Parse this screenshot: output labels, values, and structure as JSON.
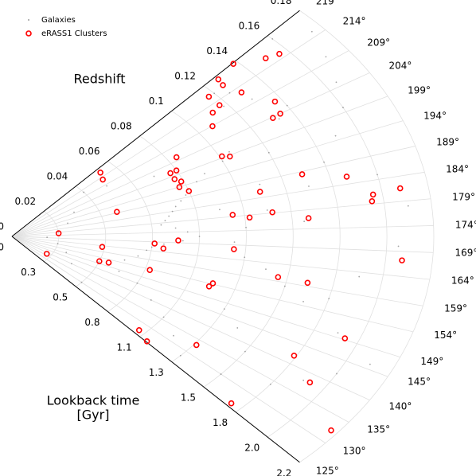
{
  "chart_data": {
    "type": "polar_wedge",
    "r_label": "Redshift",
    "lookback_label": [
      "Lookback time",
      "[Gyr]"
    ],
    "thetalim": [
      125,
      219
    ],
    "thetaticks": [
      {
        "value": 219,
        "label": "219°"
      },
      {
        "value": 214,
        "label": "214°"
      },
      {
        "value": 209,
        "label": "209°"
      },
      {
        "value": 204,
        "label": "204°"
      },
      {
        "value": 199,
        "label": "199°"
      },
      {
        "value": 194,
        "label": "194°"
      },
      {
        "value": 189,
        "label": "189°"
      },
      {
        "value": 184,
        "label": "184°"
      },
      {
        "value": 179,
        "label": "179°"
      },
      {
        "value": 174,
        "label": "174°"
      },
      {
        "value": 169,
        "label": "169°"
      },
      {
        "value": 164,
        "label": "164°"
      },
      {
        "value": 159,
        "label": "159°"
      },
      {
        "value": 154,
        "label": "154°"
      },
      {
        "value": 149,
        "label": "149°"
      },
      {
        "value": 145,
        "label": "145°"
      },
      {
        "value": 140,
        "label": "140°"
      },
      {
        "value": 135,
        "label": "135°"
      },
      {
        "value": 130,
        "label": "130°"
      },
      {
        "value": 125,
        "label": "125°"
      }
    ],
    "rlim": [
      0,
      0.18
    ],
    "rticks": [
      {
        "value": 0,
        "label": "0.0"
      },
      0.02,
      0.04,
      0.06,
      0.08,
      0.1,
      0.12,
      0.14,
      0.16,
      0.18
    ],
    "lookback_ticks": [
      {
        "value": 0,
        "label": "0.0"
      },
      0.3,
      0.5,
      0.8,
      1.1,
      1.3,
      1.5,
      1.8,
      {
        "value": 2,
        "label": "2.0"
      },
      2.2
    ],
    "grid": true,
    "legend": "upper left",
    "series": [
      {
        "name": "Galaxies",
        "color": "#808080",
        "marker": "dot",
        "x": [
          216,
          214,
          212,
          210,
          205,
          203,
          200,
          198,
          196,
          194,
          192,
          190,
          188,
          186,
          184,
          182,
          180,
          178,
          176,
          174,
          172,
          170,
          168,
          166,
          164,
          160,
          156,
          152,
          150,
          148,
          145,
          140,
          136,
          132,
          128,
          130,
          134,
          138,
          142,
          146,
          150,
          155,
          158,
          162,
          165,
          170,
          175,
          180,
          185,
          190,
          195,
          200,
          205,
          210,
          215,
          218,
          208,
          212,
          200,
          190,
          180,
          170,
          160,
          150,
          140,
          130,
          185,
          178,
          170,
          163,
          157,
          153,
          147,
          143,
          138,
          176,
          182,
          188,
          196,
          202
        ],
        "values": [
          0.12,
          0.125,
          0.118,
          0.13,
          0.14,
          0.133,
          0.105,
          0.1,
          0.09,
          0.085,
          0.08,
          0.078,
          0.075,
          0.072,
          0.07,
          0.068,
          0.066,
          0.064,
          0.07,
          0.075,
          0.08,
          0.073,
          0.065,
          0.06,
          0.058,
          0.055,
          0.05,
          0.045,
          0.04,
          0.05,
          0.06,
          0.07,
          0.08,
          0.09,
          0.1,
          0.12,
          0.14,
          0.15,
          0.16,
          0.17,
          0.15,
          0.13,
          0.12,
          0.11,
          0.1,
          0.095,
          0.1,
          0.11,
          0.13,
          0.14,
          0.15,
          0.16,
          0.165,
          0.17,
          0.175,
          0.16,
          0.05,
          0.04,
          0.03,
          0.025,
          0.02,
          0.015,
          0.02,
          0.025,
          0.03,
          0.04,
          0.16,
          0.17,
          0.165,
          0.15,
          0.14,
          0.09,
          0.1,
          0.11,
          0.12,
          0.125,
          0.09,
          0.11,
          0.12,
          0.07
        ]
      },
      {
        "name": "eRASS1 Clusters",
        "color": "#ff0000",
        "marker": "ring",
        "x": [
          218.8,
          215.8,
          215.0,
          218.1,
          216.4,
          216.1,
          212.8,
          212.1,
          212.6,
          207.0,
          204.0,
          203.8,
          208.9,
          199.5,
          198.6,
          205.3,
          200.7,
          200.6,
          195.9,
          197.7,
          193.9,
          191.3,
          216.6,
          212.5,
          188.3,
          185.7,
          181.0,
          179.6,
          181.6,
          189.7,
          177.3,
          137.7,
          179.6,
          178.2,
          179.2,
          185.8,
          176.8,
          170.1,
          168.1,
          165.8,
          163.0,
          150.8,
          151.7,
          153.6,
          167.5,
          154.3,
          152.9,
          160.2,
          159.9,
          167.2,
          126.8,
          125.3,
          133.2,
          149.3,
          142.0,
          138.2,
          125.9,
          132.3
        ],
        "values": [
          0.138,
          0.15,
          0.156,
          0.127,
          0.126,
          0.117,
          0.117,
          0.112,
          0.129,
          0.137,
          0.135,
          0.131,
          0.107,
          0.101,
          0.104,
          0.084,
          0.08,
          0.077,
          0.079,
          0.077,
          0.077,
          0.08,
          0.053,
          0.051,
          0.129,
          0.147,
          0.156,
          0.155,
          0.168,
          0.047,
          0.02,
          0.018,
          0.095,
          0.102,
          0.112,
          0.109,
          0.127,
          0.071,
          0.061,
          0.065,
          0.039,
          0.04,
          0.044,
          0.062,
          0.095,
          0.09,
          0.089,
          0.116,
          0.129,
          0.167,
          0.077,
          0.084,
          0.101,
          0.154,
          0.139,
          0.153,
          0.135,
          0.177
        ]
      }
    ]
  }
}
